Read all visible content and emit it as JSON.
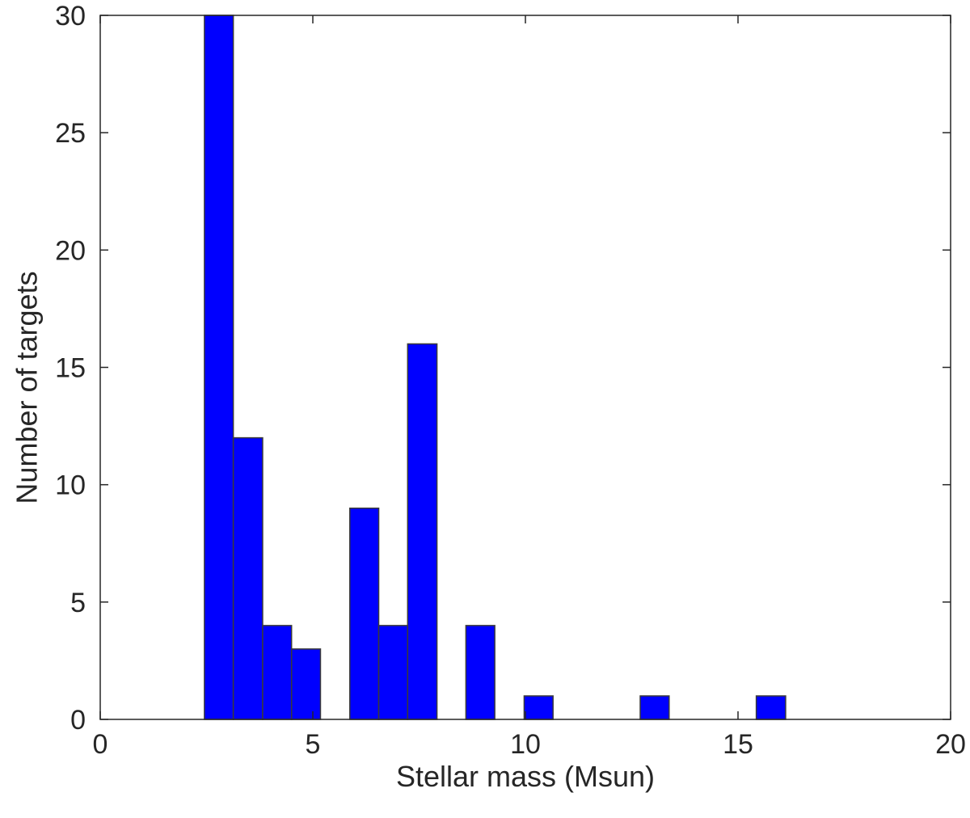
{
  "chart_data": {
    "type": "bar",
    "title": "",
    "xlabel": "Stellar mass (Msun)",
    "ylabel": "Number of targets",
    "xlim": [
      0,
      20
    ],
    "ylim": [
      0,
      30
    ],
    "xticks": [
      0,
      5,
      10,
      15,
      20
    ],
    "yticks": [
      0,
      5,
      10,
      15,
      20,
      25,
      30
    ],
    "grid": false,
    "legend": "none",
    "bar_color": "#0000ff",
    "bins": [
      {
        "x0": 2.45,
        "x1": 3.13,
        "count": 30
      },
      {
        "x0": 3.13,
        "x1": 3.82,
        "count": 12
      },
      {
        "x0": 3.82,
        "x1": 4.5,
        "count": 4
      },
      {
        "x0": 4.5,
        "x1": 5.18,
        "count": 3
      },
      {
        "x0": 5.87,
        "x1": 6.55,
        "count": 9
      },
      {
        "x0": 6.55,
        "x1": 7.23,
        "count": 4
      },
      {
        "x0": 7.23,
        "x1": 7.92,
        "count": 16
      },
      {
        "x0": 8.6,
        "x1": 9.28,
        "count": 4
      },
      {
        "x0": 9.97,
        "x1": 10.65,
        "count": 1
      },
      {
        "x0": 12.7,
        "x1": 13.38,
        "count": 1
      },
      {
        "x0": 15.43,
        "x1": 16.12,
        "count": 1
      }
    ]
  }
}
